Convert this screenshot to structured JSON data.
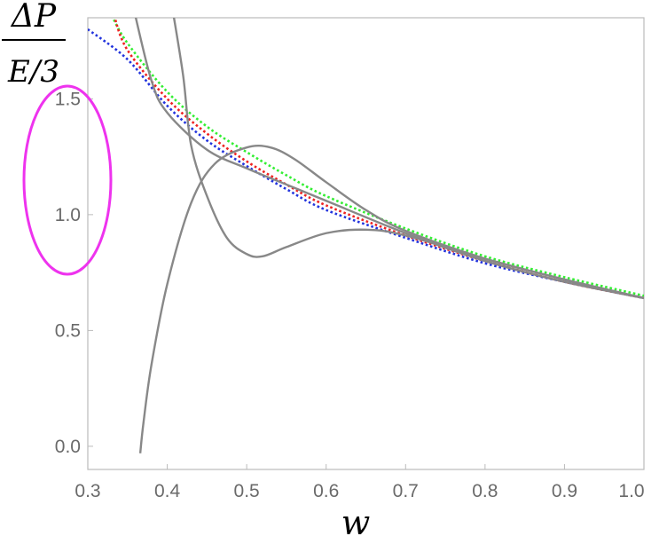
{
  "chart_data": {
    "type": "line",
    "xlabel": "w",
    "ylabel": {
      "numerator": "ΔP",
      "denominator": "E/3"
    },
    "xlim": [
      0.3,
      1.0
    ],
    "ylim": [
      -0.1,
      1.85
    ],
    "x_ticks": [
      "0.3",
      "0.4",
      "0.5",
      "0.6",
      "0.7",
      "0.8",
      "0.9",
      "1.0"
    ],
    "y_ticks": [
      "0.0",
      "0.5",
      "1.0",
      "1.5"
    ],
    "grid": false,
    "frame_color": "#bbbbbb",
    "tick_label_color": "#6a6a6a",
    "highlight": {
      "shape": "ellipse",
      "color": "#ee33ee",
      "around": "y-axis labels 1.0 and 1.5"
    },
    "series": [
      {
        "style": "dotted",
        "color": "#33ee33",
        "points": [
          [
            0.33,
            1.86
          ],
          [
            0.35,
            1.74
          ],
          [
            0.4,
            1.53
          ],
          [
            0.45,
            1.38
          ],
          [
            0.5,
            1.27
          ],
          [
            0.55,
            1.17
          ],
          [
            0.6,
            1.08
          ],
          [
            0.7,
            0.94
          ],
          [
            0.8,
            0.82
          ],
          [
            0.9,
            0.73
          ],
          [
            1.0,
            0.65
          ]
        ]
      },
      {
        "style": "dotted",
        "color": "#ee2222",
        "points": [
          [
            0.333,
            1.86
          ],
          [
            0.35,
            1.71
          ],
          [
            0.4,
            1.5
          ],
          [
            0.45,
            1.35
          ],
          [
            0.5,
            1.23
          ],
          [
            0.55,
            1.13
          ],
          [
            0.6,
            1.04
          ],
          [
            0.7,
            0.91
          ],
          [
            0.8,
            0.8
          ],
          [
            0.9,
            0.71
          ],
          [
            1.0,
            0.64
          ]
        ]
      },
      {
        "style": "dotted",
        "color": "#2233dd",
        "points": [
          [
            0.3,
            1.8
          ],
          [
            0.35,
            1.67
          ],
          [
            0.4,
            1.47
          ],
          [
            0.45,
            1.32
          ],
          [
            0.5,
            1.21
          ],
          [
            0.55,
            1.11
          ],
          [
            0.6,
            1.02
          ],
          [
            0.7,
            0.9
          ],
          [
            0.8,
            0.79
          ],
          [
            0.9,
            0.71
          ],
          [
            1.0,
            0.64
          ]
        ]
      },
      {
        "style": "solid",
        "color": "#888888",
        "points": [
          [
            0.357,
            1.9
          ],
          [
            0.38,
            1.58
          ],
          [
            0.4,
            1.44
          ],
          [
            0.45,
            1.28
          ],
          [
            0.5,
            1.2
          ],
          [
            0.55,
            1.13
          ],
          [
            0.6,
            1.06
          ],
          [
            0.7,
            0.92
          ],
          [
            0.8,
            0.8
          ],
          [
            0.9,
            0.71
          ],
          [
            1.0,
            0.64
          ]
        ]
      },
      {
        "style": "solid",
        "color": "#888888",
        "points": [
          [
            0.406,
            1.9
          ],
          [
            0.42,
            1.6
          ],
          [
            0.43,
            1.3
          ],
          [
            0.45,
            1.08
          ],
          [
            0.475,
            0.9
          ],
          [
            0.5,
            0.83
          ],
          [
            0.52,
            0.82
          ],
          [
            0.55,
            0.86
          ],
          [
            0.6,
            0.92
          ],
          [
            0.65,
            0.935
          ],
          [
            0.7,
            0.91
          ],
          [
            0.8,
            0.81
          ],
          [
            0.9,
            0.72
          ],
          [
            1.0,
            0.64
          ]
        ]
      },
      {
        "style": "solid",
        "color": "#888888",
        "points": [
          [
            0.366,
            -0.03
          ],
          [
            0.37,
            0.1
          ],
          [
            0.38,
            0.35
          ],
          [
            0.4,
            0.7
          ],
          [
            0.43,
            1.05
          ],
          [
            0.46,
            1.22
          ],
          [
            0.5,
            1.29
          ],
          [
            0.53,
            1.29
          ],
          [
            0.56,
            1.24
          ],
          [
            0.6,
            1.14
          ],
          [
            0.65,
            1.02
          ],
          [
            0.7,
            0.93
          ],
          [
            0.8,
            0.81
          ],
          [
            0.9,
            0.72
          ],
          [
            1.0,
            0.64
          ]
        ]
      }
    ]
  }
}
